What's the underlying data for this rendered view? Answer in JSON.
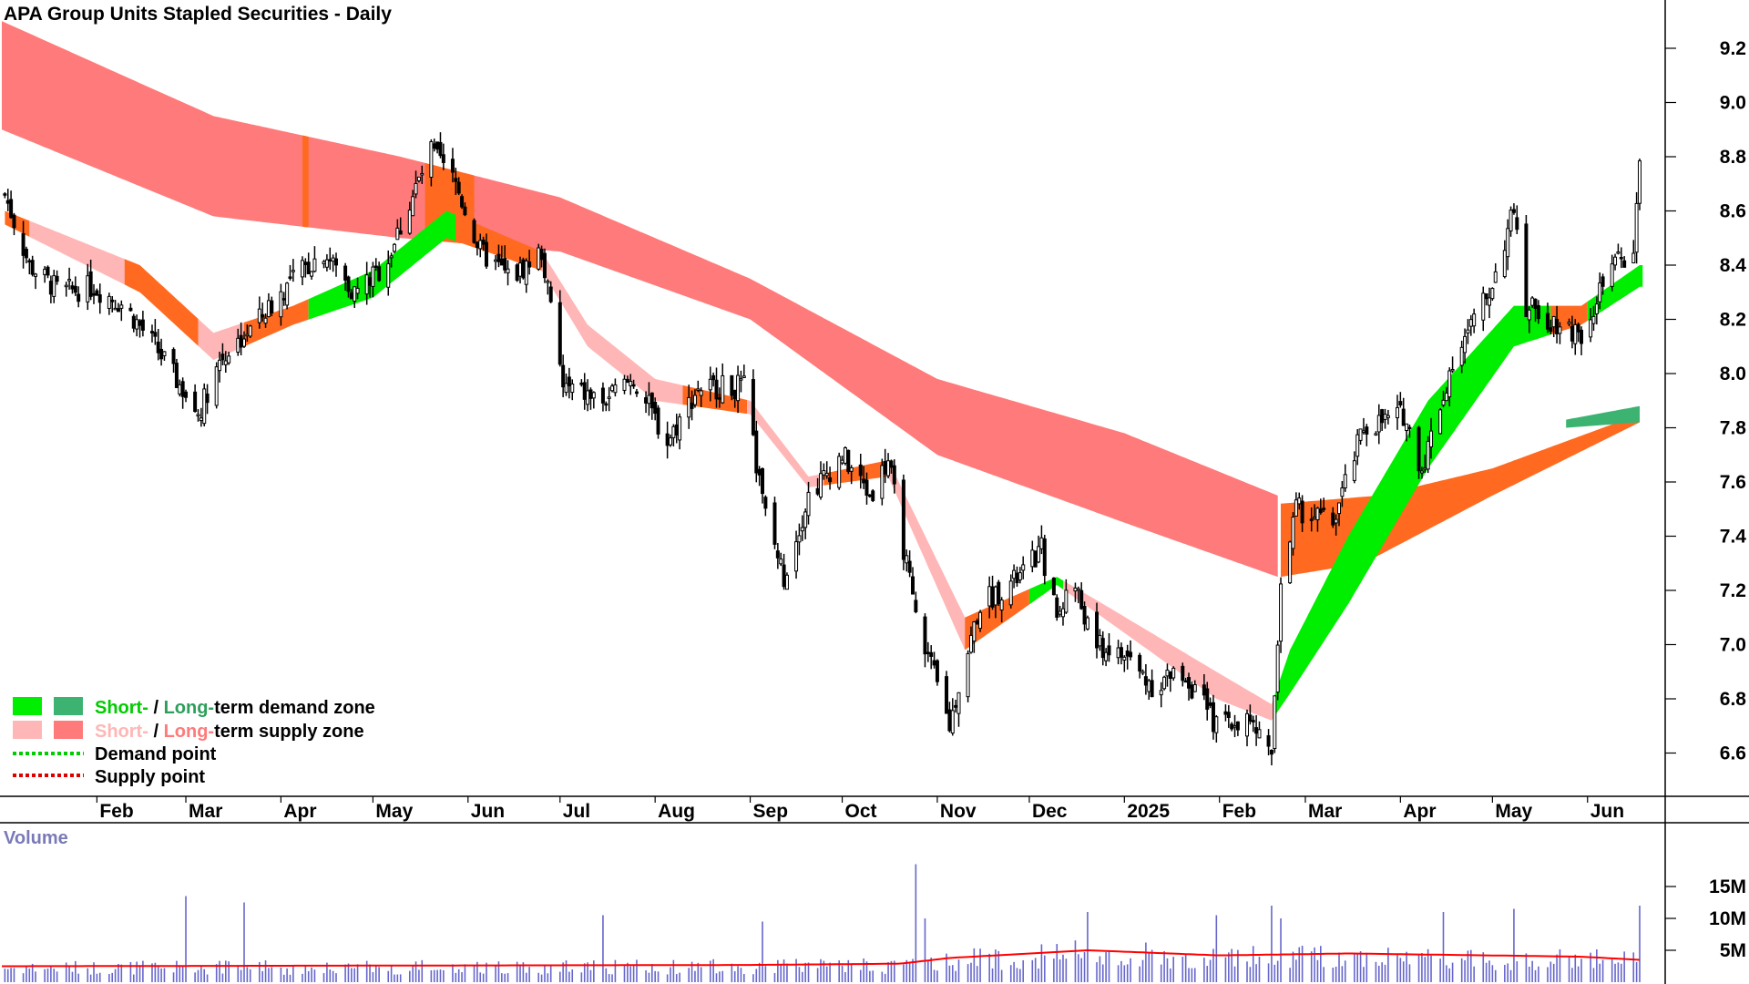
{
  "chart_data": {
    "type": "candlestick",
    "title": "APA Group Units Stapled Securities - Daily",
    "price_axis": {
      "ylim": [
        6.45,
        9.3
      ],
      "ticks": [
        "9.2",
        "9.0",
        "8.8",
        "8.6",
        "8.4",
        "8.2",
        "8.0",
        "7.8",
        "7.6",
        "7.4",
        "7.2",
        "7.0",
        "6.8",
        "6.6"
      ]
    },
    "x_axis": {
      "start_month": "2024-01",
      "labels": [
        "Feb",
        "Mar",
        "Apr",
        "May",
        "Jun",
        "Jul",
        "Aug",
        "Sep",
        "Oct",
        "Nov",
        "Dec",
        "2025",
        "Feb",
        "Mar",
        "Apr",
        "May",
        "Jun"
      ]
    },
    "volume_axis": {
      "title": "Volume",
      "ticks": [
        "15M",
        "10M",
        "5M"
      ],
      "ylim": [
        0,
        18
      ]
    },
    "legend": [
      {
        "label_short": "Short-",
        "sep": " / ",
        "label_long": "Long-",
        "label_tail": "term demand zone",
        "short_color": "#00ee00",
        "long_color": "#3cb371"
      },
      {
        "label_short": "Short-",
        "sep": " / ",
        "label_long": "Long-",
        "label_tail": "term supply zone",
        "short_color": "#ffb6b6",
        "long_color": "#ff7a7a"
      },
      {
        "label": "Demand point",
        "color": "#00cc00"
      },
      {
        "label": "Supply point",
        "color": "#dd0000"
      }
    ],
    "close_anchors": [
      [
        "2024-01-02",
        8.66
      ],
      [
        "2024-01-10",
        8.4
      ],
      [
        "2024-01-20",
        8.3
      ],
      [
        "2024-01-31",
        8.32
      ],
      [
        "2024-02-10",
        8.25
      ],
      [
        "2024-02-20",
        8.1
      ],
      [
        "2024-03-05",
        7.85
      ],
      [
        "2024-03-12",
        8.05
      ],
      [
        "2024-03-25",
        8.2
      ],
      [
        "2024-04-05",
        8.35
      ],
      [
        "2024-04-15",
        8.45
      ],
      [
        "2024-04-25",
        8.3
      ],
      [
        "2024-05-05",
        8.4
      ],
      [
        "2024-05-12",
        8.6
      ],
      [
        "2024-05-20",
        8.82
      ],
      [
        "2024-05-28",
        8.7
      ],
      [
        "2024-06-05",
        8.45
      ],
      [
        "2024-06-15",
        8.35
      ],
      [
        "2024-06-25",
        8.45
      ],
      [
        "2024-07-02",
        7.95
      ],
      [
        "2024-07-15",
        7.9
      ],
      [
        "2024-07-25",
        7.98
      ],
      [
        "2024-08-05",
        7.75
      ],
      [
        "2024-08-15",
        7.95
      ],
      [
        "2024-08-30",
        7.95
      ],
      [
        "2024-09-05",
        7.52
      ],
      [
        "2024-09-12",
        7.25
      ],
      [
        "2024-09-20",
        7.55
      ],
      [
        "2024-10-01",
        7.7
      ],
      [
        "2024-10-10",
        7.55
      ],
      [
        "2024-10-16",
        7.68
      ],
      [
        "2024-10-25",
        7.1
      ],
      [
        "2024-11-05",
        6.7
      ],
      [
        "2024-11-08",
        6.85
      ],
      [
        "2024-11-15",
        7.15
      ],
      [
        "2024-11-28",
        7.25
      ],
      [
        "2024-12-05",
        7.35
      ],
      [
        "2024-12-10",
        7.1
      ],
      [
        "2024-12-15",
        7.25
      ],
      [
        "2024-12-22",
        7.0
      ],
      [
        "2025-01-02",
        6.95
      ],
      [
        "2025-01-10",
        6.85
      ],
      [
        "2025-01-20",
        6.9
      ],
      [
        "2025-01-31",
        6.7
      ],
      [
        "2025-02-10",
        6.72
      ],
      [
        "2025-02-18",
        6.6
      ],
      [
        "2025-02-21",
        7.2
      ],
      [
        "2025-02-26",
        7.5
      ],
      [
        "2025-03-10",
        7.45
      ],
      [
        "2025-03-20",
        7.8
      ],
      [
        "2025-04-02",
        7.85
      ],
      [
        "2025-04-08",
        7.65
      ],
      [
        "2025-04-18",
        8.05
      ],
      [
        "2025-04-30",
        8.3
      ],
      [
        "2025-05-08",
        8.6
      ],
      [
        "2025-05-12",
        8.25
      ],
      [
        "2025-05-20",
        8.2
      ],
      [
        "2025-05-30",
        8.15
      ],
      [
        "2025-06-05",
        8.3
      ],
      [
        "2025-06-10",
        8.4
      ],
      [
        "2025-06-16",
        8.45
      ],
      [
        "2025-06-18",
        8.75
      ]
    ],
    "long_band_upper_anchors": [
      [
        "2024-01-01",
        9.3
      ],
      [
        "2024-03-10",
        8.95
      ],
      [
        "2024-05-10",
        8.8
      ],
      [
        "2024-07-01",
        8.65
      ],
      [
        "2024-09-01",
        8.35
      ],
      [
        "2024-11-01",
        7.98
      ],
      [
        "2025-01-01",
        7.78
      ],
      [
        "2025-02-20",
        7.55
      ]
    ],
    "long_band_lower_anchors": [
      [
        "2024-01-01",
        8.9
      ],
      [
        "2024-03-10",
        8.58
      ],
      [
        "2024-05-10",
        8.5
      ],
      [
        "2024-07-01",
        8.45
      ],
      [
        "2024-09-01",
        8.2
      ],
      [
        "2024-11-01",
        7.7
      ],
      [
        "2025-01-01",
        7.45
      ],
      [
        "2025-02-20",
        7.25
      ]
    ],
    "long_demand_upper_anchors": [
      [
        "2025-02-21",
        7.52
      ],
      [
        "2025-03-25",
        7.55
      ],
      [
        "2025-05-01",
        7.65
      ],
      [
        "2025-06-18",
        7.85
      ]
    ],
    "long_demand_lower_anchors": [
      [
        "2025-02-21",
        7.25
      ],
      [
        "2025-03-20",
        7.3
      ],
      [
        "2025-05-01",
        7.55
      ],
      [
        "2025-06-18",
        7.82
      ]
    ],
    "short_band_upper_anchors": [
      [
        "2024-01-02",
        8.6
      ],
      [
        "2024-02-15",
        8.4
      ],
      [
        "2024-03-10",
        8.15
      ],
      [
        "2024-04-05",
        8.25
      ],
      [
        "2024-05-01",
        8.38
      ],
      [
        "2024-05-25",
        8.6
      ],
      [
        "2024-06-25",
        8.45
      ],
      [
        "2024-07-10",
        8.18
      ],
      [
        "2024-08-01",
        7.98
      ],
      [
        "2024-09-01",
        7.9
      ],
      [
        "2024-09-20",
        7.62
      ],
      [
        "2024-10-16",
        7.68
      ],
      [
        "2024-11-10",
        7.1
      ],
      [
        "2024-12-10",
        7.25
      ],
      [
        "2024-12-25",
        7.15
      ],
      [
        "2025-01-31",
        6.9
      ],
      [
        "2025-02-18",
        6.78
      ],
      [
        "2025-02-24",
        6.98
      ],
      [
        "2025-03-15",
        7.4
      ],
      [
        "2025-04-10",
        7.9
      ],
      [
        "2025-05-08",
        8.25
      ],
      [
        "2025-05-30",
        8.25
      ],
      [
        "2025-06-18",
        8.4
      ]
    ],
    "short_band_lower_anchors": [
      [
        "2024-01-02",
        8.55
      ],
      [
        "2024-02-15",
        8.3
      ],
      [
        "2024-03-10",
        8.05
      ],
      [
        "2024-04-05",
        8.18
      ],
      [
        "2024-05-01",
        8.28
      ],
      [
        "2024-05-25",
        8.5
      ],
      [
        "2024-06-25",
        8.38
      ],
      [
        "2024-07-10",
        8.1
      ],
      [
        "2024-08-01",
        7.9
      ],
      [
        "2024-09-01",
        7.85
      ],
      [
        "2024-09-20",
        7.58
      ],
      [
        "2024-10-16",
        7.62
      ],
      [
        "2024-11-10",
        6.98
      ],
      [
        "2024-12-10",
        7.22
      ],
      [
        "2024-12-25",
        7.1
      ],
      [
        "2025-01-31",
        6.8
      ],
      [
        "2025-02-18",
        6.72
      ],
      [
        "2025-02-24",
        6.82
      ],
      [
        "2025-03-15",
        7.15
      ],
      [
        "2025-04-10",
        7.65
      ],
      [
        "2025-05-08",
        8.1
      ],
      [
        "2025-05-30",
        8.18
      ],
      [
        "2025-06-18",
        8.32
      ]
    ],
    "volume_spikes": [
      [
        "2024-03-01",
        13.5
      ],
      [
        "2024-03-20",
        12.5
      ],
      [
        "2024-06-15",
        9.5
      ],
      [
        "2024-07-15",
        10.5
      ],
      [
        "2024-09-05",
        9.5
      ],
      [
        "2024-10-25",
        18.5
      ],
      [
        "2024-10-28",
        10.0
      ],
      [
        "2024-12-20",
        11.0
      ],
      [
        "2025-01-31",
        10.5
      ],
      [
        "2025-02-18",
        12.0
      ],
      [
        "2025-02-21",
        10.0
      ],
      [
        "2025-03-15",
        11.5
      ],
      [
        "2025-04-15",
        11.0
      ],
      [
        "2025-05-08",
        11.5
      ],
      [
        "2025-06-18",
        12.0
      ]
    ],
    "volume_avg_anchors": [
      [
        "2024-01-01",
        2.5
      ],
      [
        "2024-09-01",
        2.7
      ],
      [
        "2024-10-20",
        2.9
      ],
      [
        "2024-11-05",
        3.8
      ],
      [
        "2024-12-20",
        5.0
      ],
      [
        "2025-02-01",
        4.2
      ],
      [
        "2025-03-15",
        4.5
      ],
      [
        "2025-05-30",
        4.0
      ],
      [
        "2025-06-18",
        3.5
      ]
    ]
  },
  "colors": {
    "long_supply": "#ff7a7a",
    "long_demand": "#ff6a20",
    "short_supply": "#ffb6b6",
    "short_demand": "#00ee00",
    "conflict": "#ff6a20",
    "candle": "#000000",
    "volume_bar": "#6666cc",
    "volume_avg": "#ff0000"
  }
}
